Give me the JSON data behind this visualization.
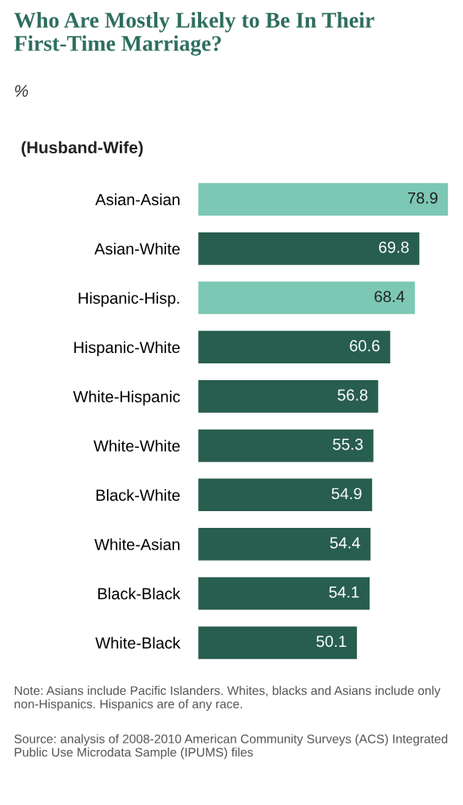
{
  "chart_data": {
    "type": "bar",
    "orientation": "horizontal",
    "title": "Who Are Mostly Likely to Be In Their First-Time Marriage?",
    "subtitle": "%",
    "ylabel": "(Husband-Wife)",
    "categories": [
      "Asian-Asian",
      "Asian-White",
      "Hispanic-Hisp.",
      "Hispanic-White",
      "White-Hispanic",
      "White-White",
      "Black-White",
      "White-Asian",
      "Black-Black",
      "White-Black"
    ],
    "values": [
      78.9,
      69.8,
      68.4,
      60.6,
      56.8,
      55.3,
      54.9,
      54.4,
      54.1,
      50.1
    ],
    "colors": [
      "#7cc8b4",
      "#285e4f",
      "#7cc8b4",
      "#285e4f",
      "#285e4f",
      "#285e4f",
      "#285e4f",
      "#285e4f",
      "#285e4f",
      "#285e4f"
    ],
    "data_labels": true,
    "grid": false,
    "legend": false,
    "annotations": [
      "Note: Asians include Pacific Islanders. Whites, blacks and Asians include only non-Hispanics. Hispanics are of any race.",
      "Source: analysis of 2008-2010 American Community Surveys (ACS) Integrated Public Use Microdata Sample (IPUMS) files"
    ]
  }
}
